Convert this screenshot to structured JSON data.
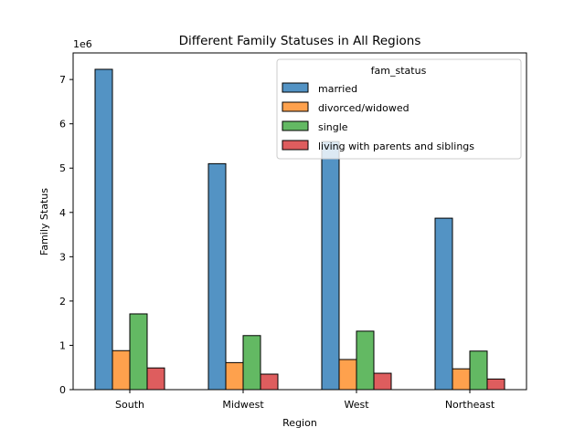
{
  "chart_data": {
    "type": "bar",
    "title": "Different Family Statuses in All Regions",
    "xlabel": "Region",
    "ylabel": "Family Status",
    "y_multiplier_label": "1e6",
    "categories": [
      "South",
      "Midwest",
      "West",
      "Northeast"
    ],
    "ylim": [
      0,
      7600000
    ],
    "yticks": [
      0,
      1000000,
      2000000,
      3000000,
      4000000,
      5000000,
      6000000,
      7000000
    ],
    "ytick_labels": [
      "0",
      "1",
      "2",
      "3",
      "4",
      "5",
      "6",
      "7"
    ],
    "legend": {
      "title": "fam_status",
      "placement": "top-right"
    },
    "grid": false,
    "series": [
      {
        "name": "married",
        "color": "#5393c4",
        "values": [
          7230000,
          5100000,
          5600000,
          3870000
        ]
      },
      {
        "name": "divorced/widowed",
        "color": "#fea14d",
        "values": [
          880000,
          610000,
          680000,
          470000
        ]
      },
      {
        "name": "single",
        "color": "#63b963",
        "values": [
          1710000,
          1220000,
          1320000,
          870000
        ]
      },
      {
        "name": "living with parents and siblings",
        "color": "#de5d5e",
        "values": [
          490000,
          350000,
          370000,
          240000
        ]
      }
    ]
  }
}
